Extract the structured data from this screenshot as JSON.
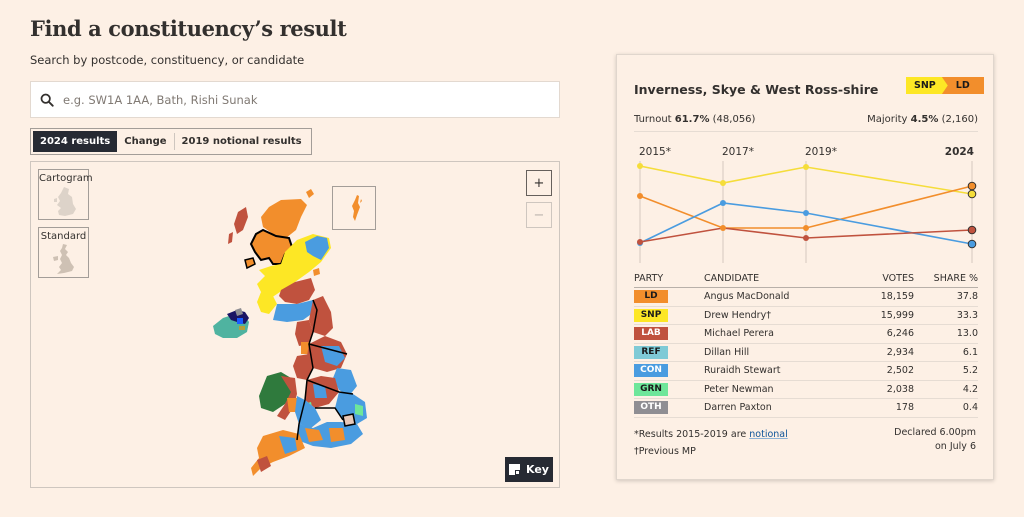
{
  "header": {
    "title": "Find a constituency’s result",
    "subtitle": "Search by postcode, constituency, or candidate"
  },
  "search": {
    "placeholder": "e.g. SW1A 1AA, Bath, Rishi Sunak",
    "value": "",
    "icon": "search-icon"
  },
  "result_toggle": {
    "options": [
      "2024 results",
      "Change",
      "2019 notional results"
    ],
    "selected": "2024 results"
  },
  "map": {
    "views": [
      {
        "label": "Cartogram",
        "icon": "cartogram-thumbnail-icon"
      },
      {
        "label": "Standard",
        "icon": "uk-map-thumbnail-icon"
      }
    ],
    "zoom_in_label": "+",
    "zoom_out_label": "−",
    "key_label": "Key",
    "key_icon": "key-legend-icon"
  },
  "constituency": {
    "name": "Inverness, Skye & West Ross-shire",
    "flip": {
      "from": "SNP",
      "to": "LD"
    },
    "turnout_label": "Turnout",
    "turnout_pct": "61.7%",
    "turnout_votes": "(48,056)",
    "majority_label": "Majority",
    "majority_pct": "4.5%",
    "majority_votes": "(2,160)"
  },
  "chart_data": {
    "type": "line",
    "x": [
      "2015*",
      "2017*",
      "2019*",
      "2024"
    ],
    "series": [
      {
        "name": "SNP",
        "color": "#f5dd3a",
        "values": [
          50.1,
          39.9,
          47.9,
          33.3
        ]
      },
      {
        "name": "LD",
        "color": "#f28e2c",
        "values": [
          32.4,
          13.2,
          13.1,
          37.8
        ]
      },
      {
        "name": "CON",
        "color": "#4a9ce0",
        "values": [
          4.6,
          28.1,
          22.3,
          5.2
        ]
      },
      {
        "name": "LAB",
        "color": "#c0523e",
        "values": [
          5.6,
          13.5,
          8.0,
          13.0
        ]
      }
    ],
    "grid": "vertical lines at each year",
    "legend": "none"
  },
  "results_table": {
    "headers": [
      "PARTY",
      "CANDIDATE",
      "VOTES",
      "SHARE %"
    ],
    "rows": [
      {
        "party": "LD",
        "candidate": "Angus MacDonald",
        "votes": "18,159",
        "share": "37.8",
        "color": "#f28e2c",
        "text": "#1a1a1a"
      },
      {
        "party": "SNP",
        "candidate": "Drew Hendry†",
        "votes": "15,999",
        "share": "33.3",
        "color": "#fde725",
        "text": "#1a1a1a"
      },
      {
        "party": "LAB",
        "candidate": "Michael Perera",
        "votes": "6,246",
        "share": "13.0",
        "color": "#c0523e",
        "text": "#ffffff"
      },
      {
        "party": "REF",
        "candidate": "Dillan Hill",
        "votes": "2,934",
        "share": "6.1",
        "color": "#7fcad6",
        "text": "#1a1a1a"
      },
      {
        "party": "CON",
        "candidate": "Ruraidh Stewart",
        "votes": "2,502",
        "share": "5.2",
        "color": "#4a9ce0",
        "text": "#ffffff"
      },
      {
        "party": "GRN",
        "candidate": "Peter Newman",
        "votes": "2,038",
        "share": "4.2",
        "color": "#6ee69a",
        "text": "#1a1a1a"
      },
      {
        "party": "OTH",
        "candidate": "Darren Paxton",
        "votes": "178",
        "share": "0.4",
        "color": "#8f8e93",
        "text": "#ffffff"
      }
    ]
  },
  "footnotes": {
    "notional_prefix": "*Results 2015-2019 are ",
    "notional_link": "notional",
    "previous_mp": "†Previous MP",
    "declared_line1": "Declared 6.00pm",
    "declared_line2": "on July 6"
  },
  "colors": {
    "background": "#fdf0e5",
    "dark": "#262a33",
    "LD": "#f28e2c",
    "SNP": "#fde725",
    "LAB": "#c0523e",
    "CON": "#4a9ce0",
    "REF": "#7fcad6",
    "GRN": "#6ee69a",
    "OTH": "#8f8e93",
    "PC": "#2f7a3d",
    "DUP": "#1b1464",
    "SF": "#4fb3a0"
  }
}
